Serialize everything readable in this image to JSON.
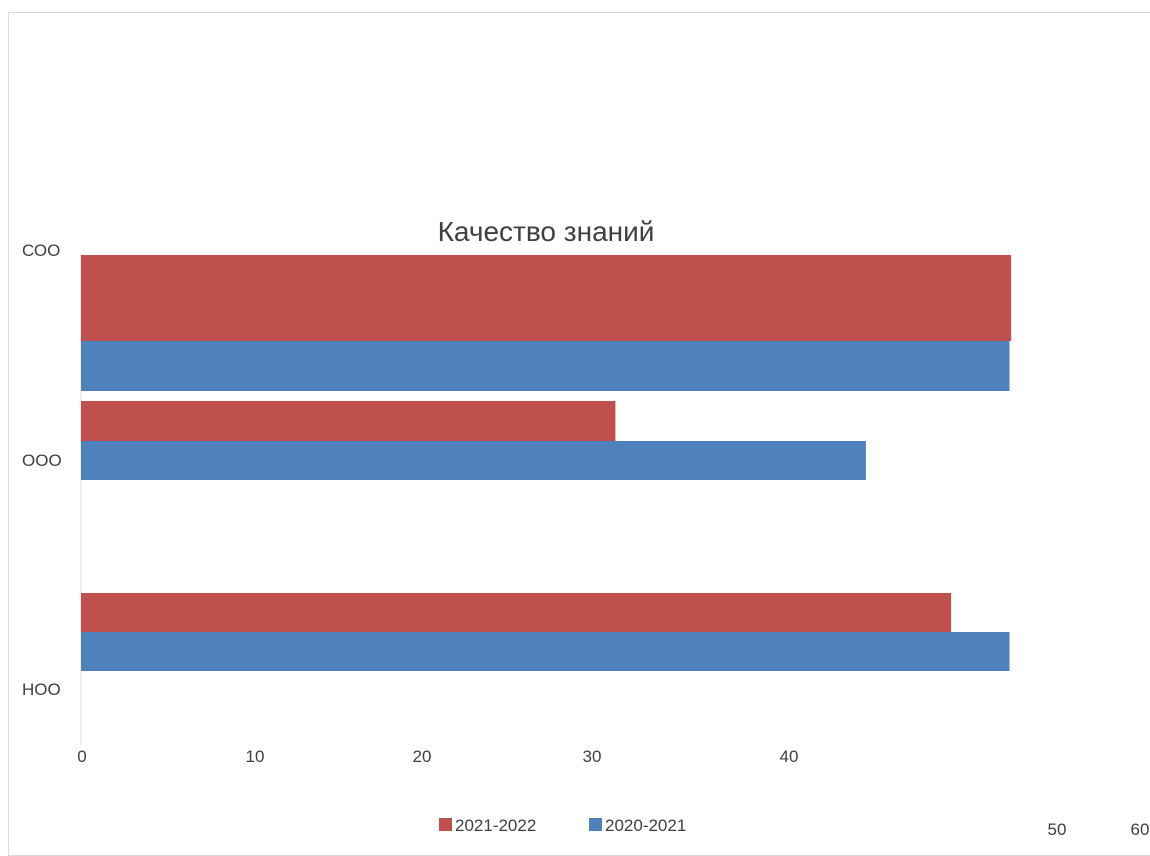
{
  "chart_data": {
    "type": "bar",
    "orientation": "horizontal",
    "title": "Качество знаний",
    "categories": [
      "НОО",
      "ООО",
      "СОО"
    ],
    "series": [
      {
        "name": "2021-2022",
        "color": "#c0504d",
        "values": [
          52.1,
          32,
          55.7
        ]
      },
      {
        "name": "2020-2021",
        "color": "#4f81bd",
        "values": [
          55.6,
          47,
          55.6
        ]
      }
    ],
    "x_ticks": [
      0,
      10,
      20,
      30,
      40,
      50,
      60
    ],
    "xlim": [
      0,
      60
    ],
    "grid": false,
    "legend_position": "bottom"
  }
}
